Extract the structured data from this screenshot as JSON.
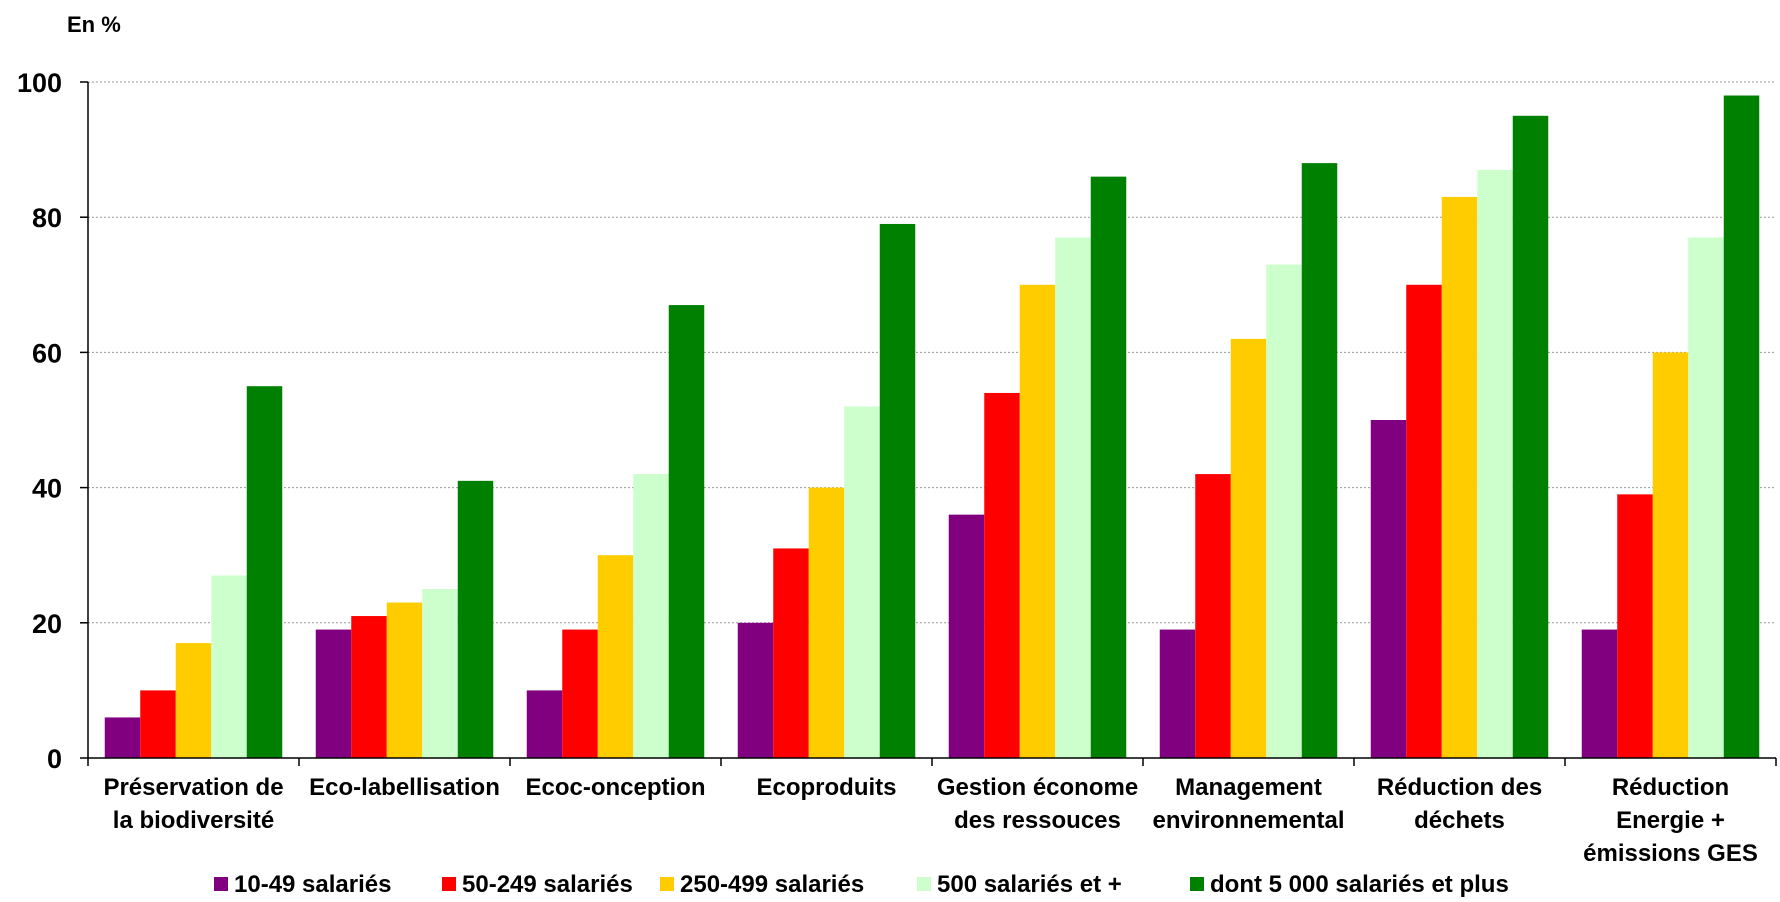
{
  "chart_data": {
    "type": "bar",
    "unit_label": "En %",
    "categories": [
      [
        "Préservation de",
        "la biodiversité"
      ],
      [
        "Eco-labellisation"
      ],
      [
        "Ecoc-onception"
      ],
      [
        "Ecoproduits"
      ],
      [
        "Gestion économe",
        "des ressouces"
      ],
      [
        "Management",
        "environnemental"
      ],
      [
        "Réduction des",
        "déchets"
      ],
      [
        "Réduction",
        "Energie +",
        "émissions GES"
      ]
    ],
    "ylim": [
      0,
      100
    ],
    "yticks": [
      0,
      20,
      40,
      60,
      80,
      100
    ],
    "grid": true,
    "legend_position": "bottom",
    "series": [
      {
        "name": "10-49 salariés",
        "color": "#800080",
        "values": [
          6,
          19,
          10,
          20,
          36,
          19,
          50,
          19
        ]
      },
      {
        "name": "50-249 salariés",
        "color": "#ff0000",
        "values": [
          10,
          21,
          19,
          31,
          54,
          42,
          70,
          39
        ]
      },
      {
        "name": "250-499 salariés",
        "color": "#ffcc00",
        "values": [
          17,
          23,
          30,
          40,
          70,
          62,
          83,
          60
        ]
      },
      {
        "name": "500 salariés et +",
        "color": "#ccffcc",
        "values": [
          27,
          25,
          42,
          52,
          77,
          73,
          87,
          77
        ]
      },
      {
        "name": "dont 5 000 salariés et plus",
        "color": "#008000",
        "values": [
          55,
          41,
          67,
          79,
          86,
          88,
          95,
          98
        ]
      }
    ]
  }
}
